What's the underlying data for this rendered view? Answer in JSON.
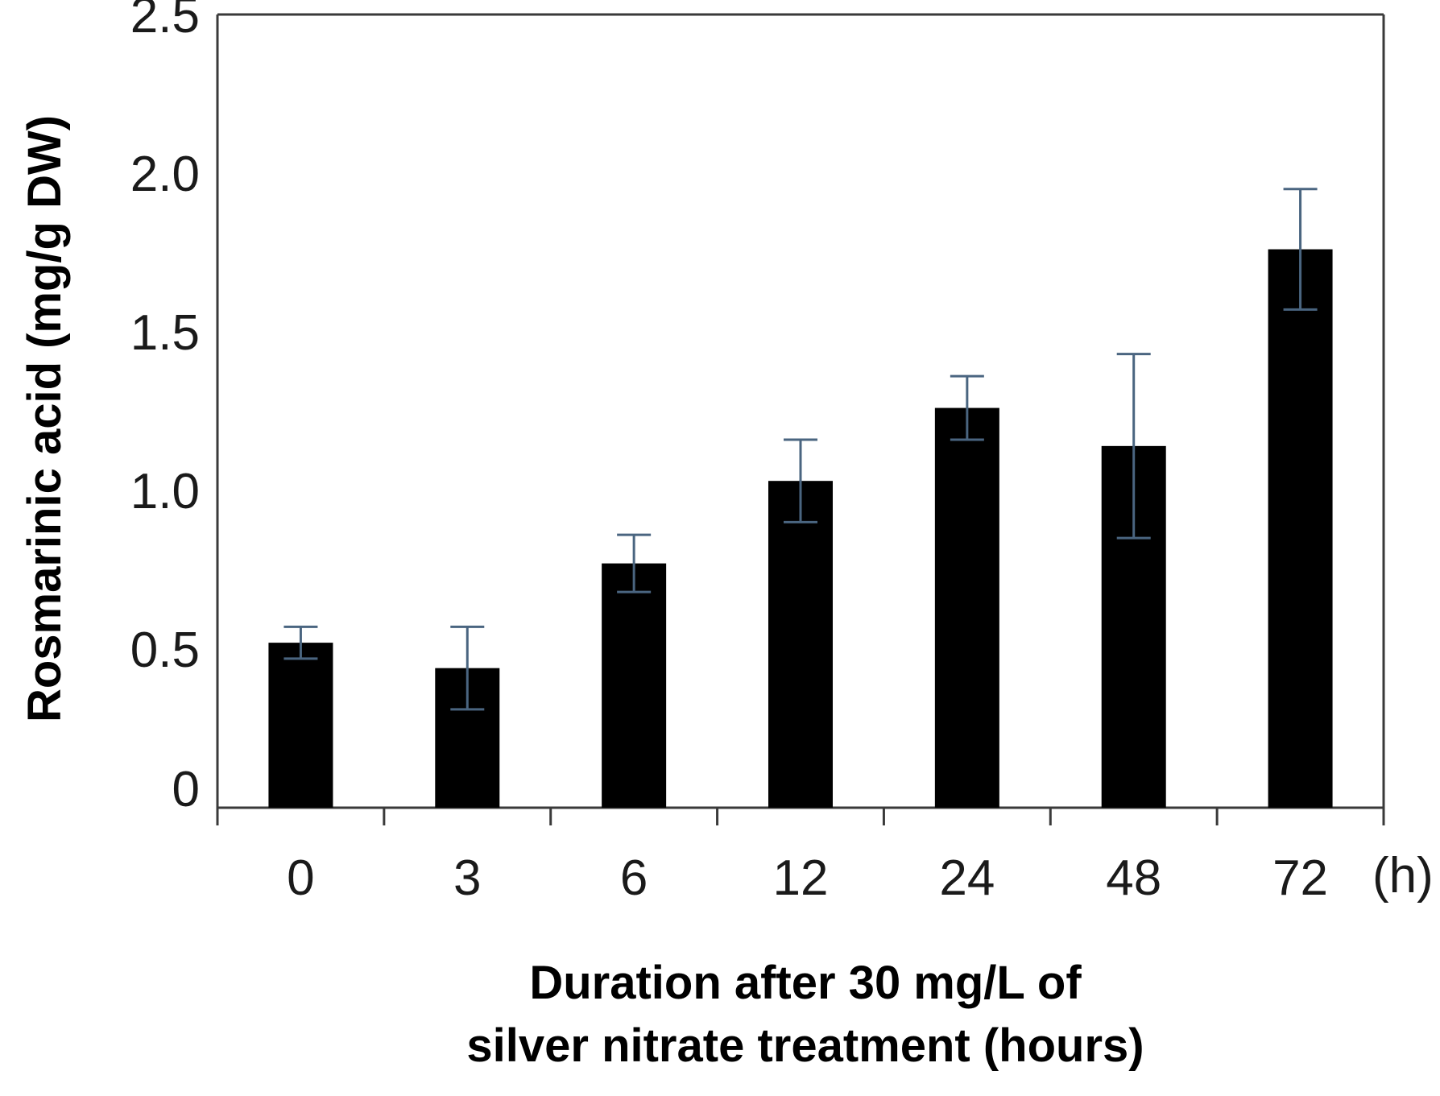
{
  "chart_data": {
    "type": "bar",
    "title": "",
    "categories": [
      "0",
      "3",
      "6",
      "12",
      "24",
      "48",
      "72"
    ],
    "values": [
      0.52,
      0.44,
      0.77,
      1.03,
      1.26,
      1.14,
      1.76
    ],
    "errors": [
      0.05,
      0.13,
      0.09,
      0.13,
      0.1,
      0.29,
      0.19
    ],
    "x_unit_label": "(h)",
    "xlabel_lines": [
      "Duration after 30 mg/L of",
      "silver nitrate treatment (hours)"
    ],
    "ylabel": "Rosmarinic  acid (mg/g DW)",
    "ylim": [
      0,
      2.5
    ],
    "yticks": [
      0,
      0.5,
      1.0,
      1.5,
      2.0,
      2.5
    ],
    "ytick_labels": [
      "0",
      "0.5",
      "1.0",
      "1.5",
      "2.0",
      "2.5"
    ],
    "grid": false,
    "legend": "none",
    "colors": {
      "bar": "#000000",
      "error_bar": "#4a6580",
      "axis": "#3a3a3a"
    }
  }
}
